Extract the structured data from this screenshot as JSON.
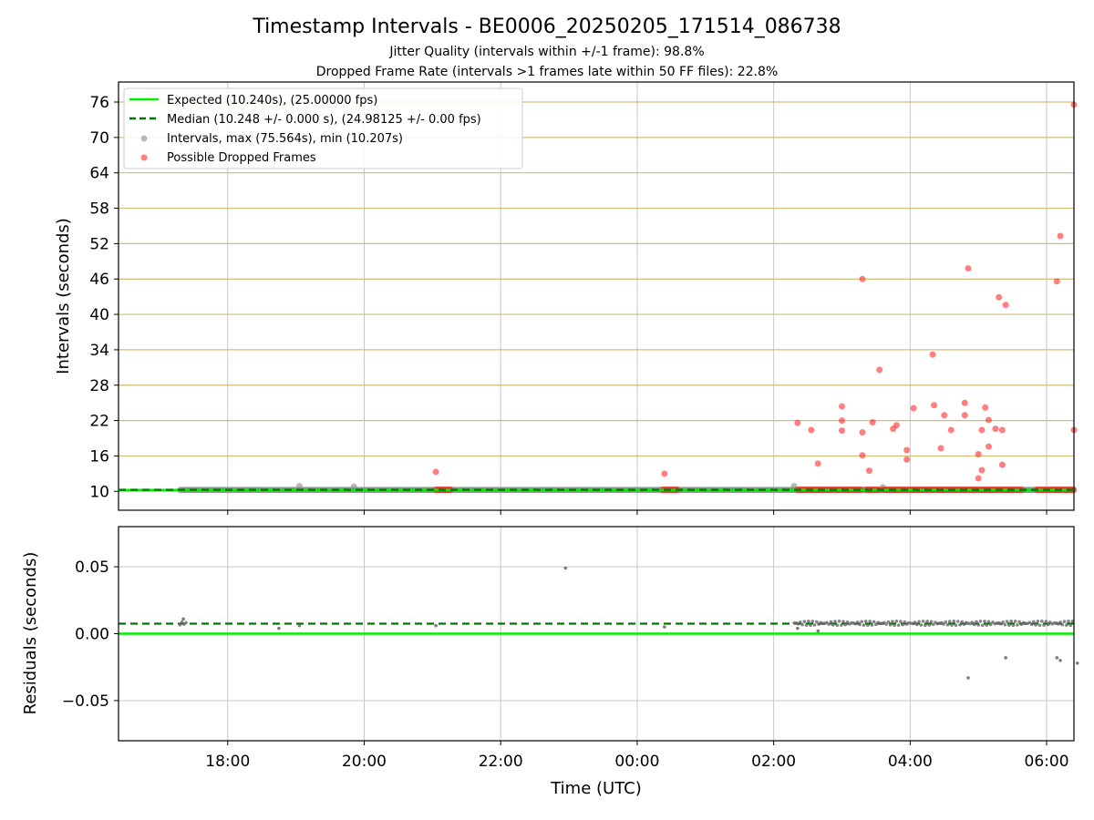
{
  "figure": {
    "title": "Timestamp Intervals - BE0006_20250205_171514_086738",
    "subtitle_1": "Jitter Quality (intervals within +/-1 frame): 98.8%",
    "subtitle_2": "Dropped Frame Rate (intervals >1 frames late within 50 FF files): 22.8%"
  },
  "colors": {
    "expected": "#00ee00",
    "median": "#007700",
    "interval": "#8c8c8c",
    "dropped": "#ff2a2a",
    "hgrid_top": "#d2bd74",
    "grid": "#c8c8c8"
  },
  "chart_data": [
    {
      "type": "scatter",
      "panel": "intervals",
      "xlabel": "Time (UTC)",
      "ylabel": "Intervals (seconds)",
      "x_unit": "hours since 17:00 UTC on the plot's first day",
      "xlim": [
        -0.6,
        13.4
      ],
      "ylim": [
        6.8,
        79.4
      ],
      "yticks": [
        10,
        16,
        22,
        28,
        34,
        40,
        46,
        52,
        58,
        64,
        70,
        76
      ],
      "ytick_labels": [
        "10",
        "16",
        "22",
        "28",
        "34",
        "40",
        "46",
        "52",
        "58",
        "64",
        "70",
        "76"
      ],
      "grid": "horizontal gold lines at each y tick, vertical gray lines at each x tick",
      "legend": {
        "placement": "top-left",
        "entries": [
          "Expected (10.240s), (25.00000 fps)",
          "Median (10.248 +/- 0.000 s), (24.98125 +/- 0.00 fps)",
          "Intervals, max (75.564s), min (10.207s)",
          "Possible Dropped Frames"
        ]
      },
      "series": [
        {
          "name": "Expected (10.240s), (25.00000 fps)",
          "style": "line",
          "y": 10.24
        },
        {
          "name": "Median (10.248 +/- 0.000 s), (24.98125 +/- 0.00 fps)",
          "style": "dashed",
          "y": 10.248
        },
        {
          "name": "Intervals, max (75.564s), min (10.207s)",
          "style": "points",
          "x_range": [
            0.3,
            13.4
          ],
          "baseline_y": 10.24,
          "outliers": [
            {
              "x": 2.05,
              "y": 10.9
            },
            {
              "x": 2.85,
              "y": 10.8
            },
            {
              "x": 9.3,
              "y": 10.9
            },
            {
              "x": 10.6,
              "y": 10.7
            }
          ]
        },
        {
          "name": "Possible Dropped Frames",
          "style": "points",
          "baseline_ranges": [
            [
              4.05,
              4.28
            ],
            [
              7.37,
              7.6
            ],
            [
              9.35,
              9.58
            ],
            [
              9.58,
              10.28
            ],
            [
              10.35,
              10.55
            ],
            [
              10.6,
              12.65
            ],
            [
              12.85,
              13.4
            ]
          ],
          "baseline_y": 10.28,
          "points": [
            {
              "x": 4.05,
              "y": 13.3
            },
            {
              "x": 7.4,
              "y": 13.0
            },
            {
              "x": 9.35,
              "y": 21.6
            },
            {
              "x": 9.55,
              "y": 20.4
            },
            {
              "x": 9.65,
              "y": 14.7
            },
            {
              "x": 10.0,
              "y": 24.4
            },
            {
              "x": 10.0,
              "y": 22.0
            },
            {
              "x": 10.0,
              "y": 20.3
            },
            {
              "x": 10.3,
              "y": 46.0
            },
            {
              "x": 10.3,
              "y": 20.0
            },
            {
              "x": 10.3,
              "y": 16.1
            },
            {
              "x": 10.4,
              "y": 13.5
            },
            {
              "x": 10.45,
              "y": 21.7
            },
            {
              "x": 10.55,
              "y": 30.6
            },
            {
              "x": 10.75,
              "y": 20.6
            },
            {
              "x": 10.8,
              "y": 21.2
            },
            {
              "x": 10.95,
              "y": 17.0
            },
            {
              "x": 10.95,
              "y": 15.4
            },
            {
              "x": 11.05,
              "y": 24.1
            },
            {
              "x": 11.33,
              "y": 33.2
            },
            {
              "x": 11.35,
              "y": 24.6
            },
            {
              "x": 11.45,
              "y": 17.3
            },
            {
              "x": 11.5,
              "y": 22.9
            },
            {
              "x": 11.6,
              "y": 20.4
            },
            {
              "x": 11.8,
              "y": 25.0
            },
            {
              "x": 11.8,
              "y": 22.9
            },
            {
              "x": 11.85,
              "y": 47.8
            },
            {
              "x": 12.0,
              "y": 16.3
            },
            {
              "x": 12.0,
              "y": 12.2
            },
            {
              "x": 12.05,
              "y": 20.4
            },
            {
              "x": 12.05,
              "y": 13.6
            },
            {
              "x": 12.1,
              "y": 24.2
            },
            {
              "x": 12.15,
              "y": 22.1
            },
            {
              "x": 12.15,
              "y": 17.6
            },
            {
              "x": 12.25,
              "y": 20.6
            },
            {
              "x": 12.3,
              "y": 42.9
            },
            {
              "x": 12.35,
              "y": 20.4
            },
            {
              "x": 12.35,
              "y": 14.5
            },
            {
              "x": 12.4,
              "y": 41.6
            },
            {
              "x": 13.15,
              "y": 45.6
            },
            {
              "x": 13.2,
              "y": 53.3
            },
            {
              "x": 13.4,
              "y": 20.4
            },
            {
              "x": 13.4,
              "y": 75.564
            }
          ]
        }
      ]
    },
    {
      "type": "scatter",
      "panel": "residuals",
      "xlabel": "Time (UTC)",
      "ylabel": "Residuals (seconds)",
      "x_unit": "hours since 17:00 UTC on the plot's first day",
      "xlim": [
        -0.6,
        13.4
      ],
      "ylim": [
        -0.08,
        0.08
      ],
      "yticks": [
        -0.05,
        0.0,
        0.05
      ],
      "ytick_labels": [
        "−0.05",
        "0.00",
        "0.05"
      ],
      "xticks": [
        1,
        3,
        5,
        7,
        9,
        11,
        13
      ],
      "xtick_labels": [
        "18:00",
        "20:00",
        "22:00",
        "00:00",
        "02:00",
        "04:00",
        "06:00"
      ],
      "grid": "on",
      "series": [
        {
          "name": "Expected",
          "style": "line",
          "y": 0.0
        },
        {
          "name": "Median",
          "style": "dashed",
          "y": 0.0075
        },
        {
          "name": "Residuals",
          "style": "points",
          "baseline_y": 0.0075,
          "cluster_ranges": [
            [
              0.3,
              0.4
            ],
            [
              9.3,
              13.4
            ]
          ],
          "points": [
            {
              "x": 0.35,
              "y": 0.011
            },
            {
              "x": 1.75,
              "y": 0.004
            },
            {
              "x": 2.05,
              "y": 0.006
            },
            {
              "x": 4.05,
              "y": 0.006
            },
            {
              "x": 5.95,
              "y": 0.049
            },
            {
              "x": 7.4,
              "y": 0.005
            },
            {
              "x": 9.35,
              "y": 0.004
            },
            {
              "x": 9.65,
              "y": 0.002
            },
            {
              "x": 11.85,
              "y": -0.033
            },
            {
              "x": 12.4,
              "y": -0.018
            },
            {
              "x": 13.15,
              "y": -0.018
            },
            {
              "x": 13.2,
              "y": -0.02
            },
            {
              "x": 13.45,
              "y": -0.022
            }
          ]
        }
      ]
    }
  ]
}
